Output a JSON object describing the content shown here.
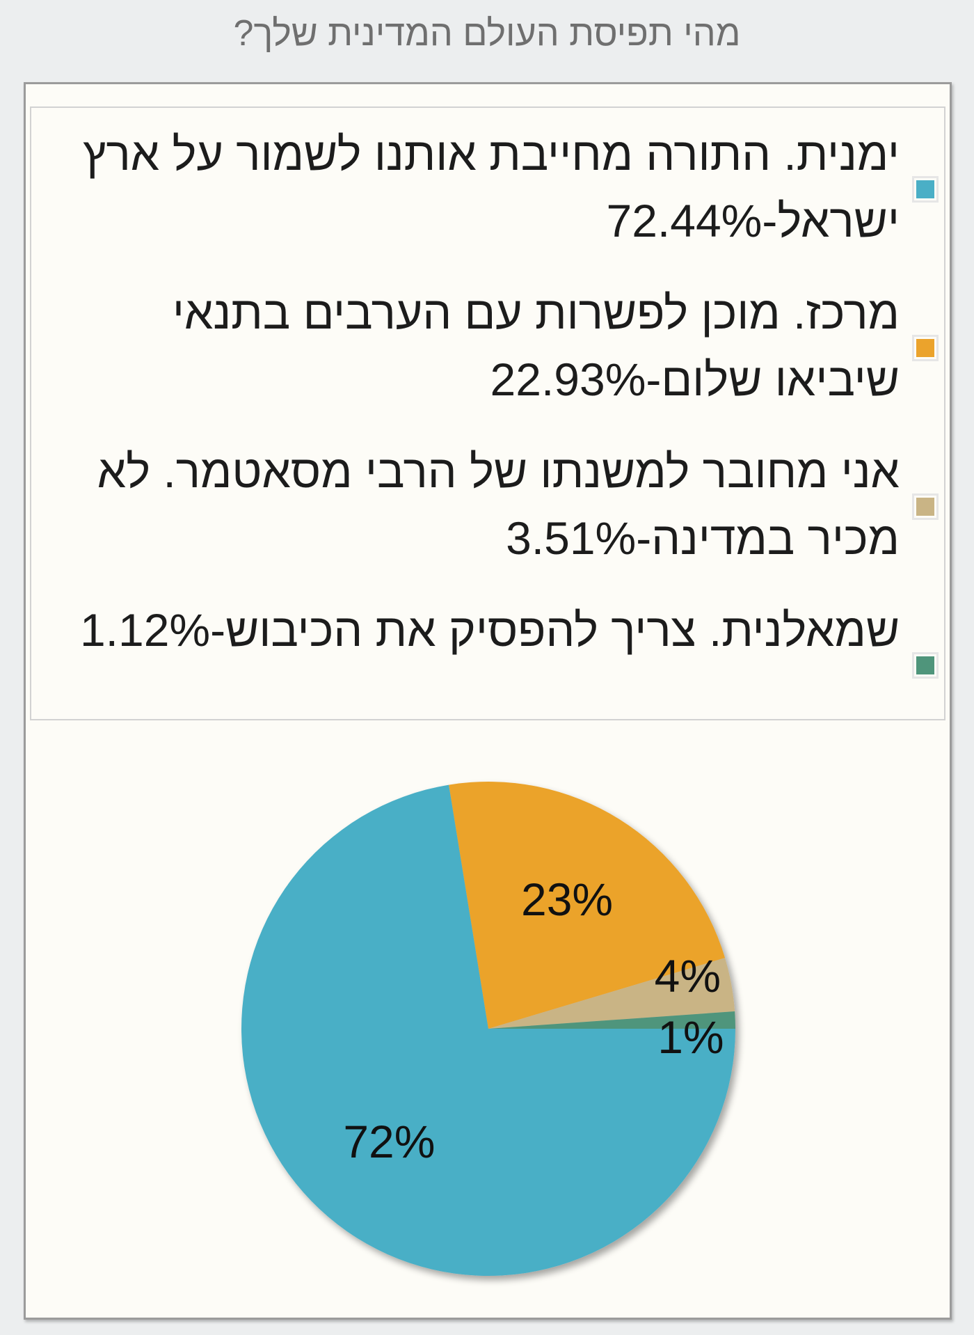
{
  "page": {
    "title": "מהי תפיסת העולם המדינית שלך?"
  },
  "legend": [
    {
      "label": "ימנית. התורה מחייבת אותנו לשמור על ארץ ישראל-72.44%",
      "color": "#4aafc6"
    },
    {
      "label": "מרכז. מוכן לפשרות עם הערבים בתנאי שיביאו שלום-22.93%",
      "color": "#eba32c"
    },
    {
      "label": "אני מחובר למשנתו של הרבי מסאטמר. לא מכיר במדינה-3.51%",
      "color": "#c9b485"
    },
    {
      "label": "שמאלנית. צריך להפסיק את הכיבוש-1.12%",
      "color": "#4f957b"
    }
  ],
  "chart_data": {
    "type": "pie",
    "title": "מהי תפיסת העולם המדינית שלך?",
    "categories": [
      "ימנית. התורה מחייבת אותנו לשמור על ארץ ישראל",
      "מרכז. מוכן לפשרות עם הערבים בתנאי שיביאו שלום",
      "אני מחובר למשנתו של הרבי מסאטמר. לא מכיר במדינה",
      "שמאלנית. צריך להפסיק את הכיבוש"
    ],
    "values": [
      72.44,
      22.93,
      3.51,
      1.12
    ],
    "data_labels": [
      "72%",
      "23%",
      "4%",
      "1%"
    ],
    "colors": [
      "#4aafc6",
      "#eba32c",
      "#c9b485",
      "#4f957b"
    ],
    "legend_position": "top"
  }
}
